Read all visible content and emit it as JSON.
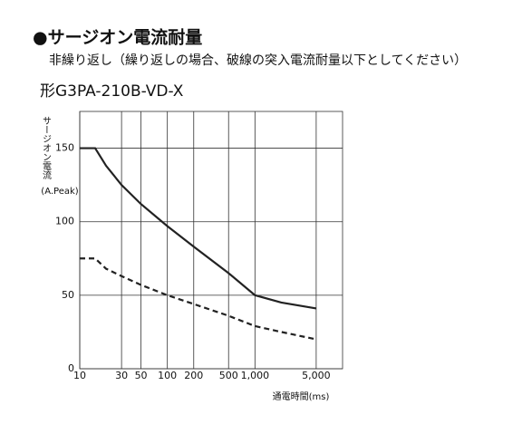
{
  "chart_data": {
    "type": "line",
    "title": "●サージオン電流耐量",
    "subtitle": "非繰り返し（繰り返しの場合、破線の突入電流耐量以下としてください）",
    "model": "形G3PA-210B-VD-X",
    "y_label": "サージオン電流",
    "y_unit": "(A.Peak)",
    "x_label": "通電時間(ms)",
    "x_scale": "log",
    "x": [
      10,
      15,
      20,
      30,
      50,
      100,
      200,
      500,
      1000,
      2000,
      5000
    ],
    "series": [
      {
        "color": "#222222",
        "linestyle": "solid",
        "values": [
          150,
          150,
          138,
          125,
          112,
          97,
          83,
          65,
          50,
          45,
          41
        ]
      },
      {
        "color": "#222222",
        "linestyle": "dashed",
        "values": [
          75,
          75,
          68,
          63,
          57,
          50,
          44,
          36,
          29,
          25,
          20
        ]
      }
    ],
    "xlim": [
      10,
      10000
    ],
    "xticks": [
      10,
      30,
      50,
      100,
      200,
      500,
      {
        "value": 1000,
        "label": "1,000"
      },
      {
        "value": 5000,
        "label": "5,000"
      }
    ],
    "ylim": [
      0,
      175
    ],
    "yticks": [
      0,
      50,
      100,
      150
    ],
    "grid": true
  }
}
